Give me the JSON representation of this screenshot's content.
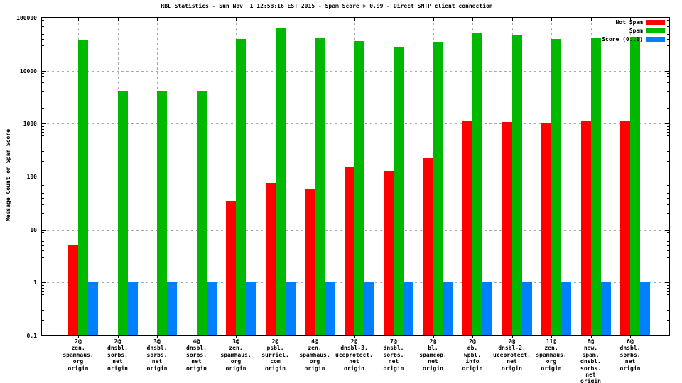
{
  "title": "RBL Statistics - Sun Nov  1 12:58:16 EST 2015 - Spam Score > 0.99 - Direct SMTP client connection",
  "colors": {
    "not_spam": "#ff0000",
    "spam": "#00b800",
    "score": "#0080ff",
    "grid": "#a9a9a9",
    "axis": "#000000",
    "background": "#ffffff"
  },
  "y_axis": {
    "label": "Message Count or Spam Score",
    "scale": "log",
    "min": 0.1,
    "max": 100000,
    "ticks": [
      "100000",
      "10000",
      "1000",
      "100",
      "10",
      "1",
      "0.1"
    ]
  },
  "legend": {
    "position": "top-right",
    "items": [
      {
        "label": "Not Spam",
        "color": "#ff0000"
      },
      {
        "label": "Spam",
        "color": "#00b800"
      },
      {
        "label": "Score (0..1)",
        "color": "#0080ff"
      }
    ]
  },
  "chart_data": {
    "type": "bar",
    "title": "RBL Statistics - Sun Nov  1 12:58:16 EST 2015 - Spam Score > 0.99 - Direct SMTP client connection",
    "xlabel": "",
    "ylabel": "Message Count or Spam Score",
    "yscale": "log",
    "ylim": [
      0.1,
      100000
    ],
    "grid": true,
    "legend_position": "top-right",
    "categories": [
      [
        "2@",
        "zen.",
        "spamhaus.",
        "org",
        "origin"
      ],
      [
        "2@",
        "dnsbl.",
        "sorbs.",
        "net",
        "origin"
      ],
      [
        "3@",
        "dnsbl.",
        "sorbs.",
        "net",
        "origin"
      ],
      [
        "4@",
        "dnsbl.",
        "sorbs.",
        "net",
        "origin"
      ],
      [
        "3@",
        "zen.",
        "spamhaus.",
        "org",
        "origin"
      ],
      [
        "2@",
        "psbl.",
        "surriel.",
        "com",
        "origin"
      ],
      [
        "4@",
        "zen.",
        "spamhaus.",
        "org",
        "origin"
      ],
      [
        "2@",
        "dnsbl-3.",
        "uceprotect.",
        "net",
        "origin"
      ],
      [
        "7@",
        "dnsbl.",
        "sorbs.",
        "net",
        "origin"
      ],
      [
        "2@",
        "bl.",
        "spamcop.",
        "net",
        "origin"
      ],
      [
        "2@",
        "db.",
        "wpbl.",
        "info",
        "origin"
      ],
      [
        "2@",
        "dnsbl-2.",
        "uceprotect.",
        "net",
        "origin"
      ],
      [
        "11@",
        "zen.",
        "spamhaus.",
        "org",
        "origin"
      ],
      [
        "6@",
        "new.",
        "spam.",
        "dnsbl.",
        "sorbs.",
        "net",
        "origin"
      ],
      [
        "6@",
        "dnsbl.",
        "sorbs.",
        "net",
        "origin"
      ]
    ],
    "series": [
      {
        "name": "Not Spam",
        "color": "#ff0000",
        "values": [
          5,
          null,
          null,
          null,
          35,
          75,
          57,
          150,
          128,
          220,
          1150,
          1075,
          1040,
          1150,
          1150
        ]
      },
      {
        "name": "Spam",
        "color": "#00b800",
        "values": [
          38000,
          4000,
          4000,
          4000,
          40000,
          65000,
          42000,
          36000,
          28000,
          35000,
          53000,
          46000,
          40000,
          42000,
          43000
        ]
      },
      {
        "name": "Score (0..1)",
        "color": "#0080ff",
        "values": [
          1,
          1,
          1,
          1,
          1,
          1,
          1,
          1,
          1,
          1,
          1,
          1,
          1,
          1,
          1
        ]
      }
    ]
  }
}
